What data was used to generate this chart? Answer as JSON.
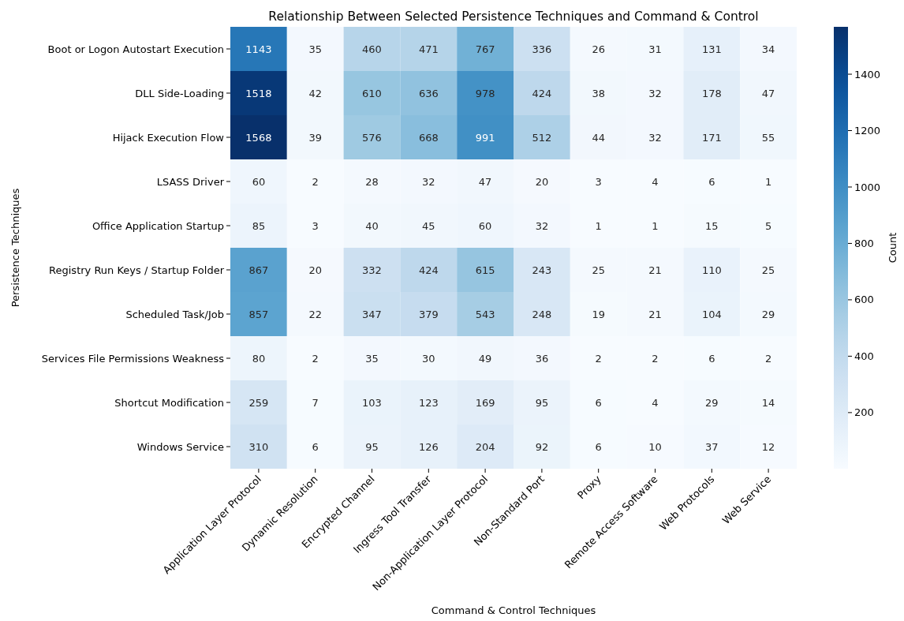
{
  "chart_data": {
    "type": "heatmap",
    "title": "Relationship Between Selected Persistence Techniques and Command & Control",
    "xlabel": "Command & Control Techniques",
    "ylabel": "Persistence Techniques",
    "clabel": "Count",
    "categories": [
      "Application Layer Protocol",
      "Dynamic Resolution",
      "Encrypted Channel",
      "Ingress Tool Transfer",
      "Non-Application Layer Protocol",
      "Non-Standard Port",
      "Proxy",
      "Remote Access Software",
      "Web Protocols",
      "Web Service"
    ],
    "y_categories": [
      "Boot or Logon Autostart Execution",
      "DLL Side-Loading",
      "Hijack Execution Flow",
      "LSASS Driver",
      "Office Application Startup",
      "Registry Run Keys / Startup Folder",
      "Scheduled Task/Job",
      "Services File Permissions Weakness",
      "Shortcut Modification",
      "Windows Service"
    ],
    "cells": [
      [
        1143,
        35,
        460,
        471,
        767,
        336,
        26,
        31,
        131,
        34
      ],
      [
        1518,
        42,
        610,
        636,
        978,
        424,
        38,
        32,
        178,
        47
      ],
      [
        1568,
        39,
        576,
        668,
        991,
        512,
        44,
        32,
        171,
        55
      ],
      [
        60,
        2,
        28,
        32,
        47,
        20,
        3,
        4,
        6,
        1
      ],
      [
        85,
        3,
        40,
        45,
        60,
        32,
        1,
        1,
        15,
        5
      ],
      [
        867,
        20,
        332,
        424,
        615,
        243,
        25,
        21,
        110,
        25
      ],
      [
        857,
        22,
        347,
        379,
        543,
        248,
        19,
        21,
        104,
        29
      ],
      [
        80,
        2,
        35,
        30,
        49,
        36,
        2,
        2,
        6,
        2
      ],
      [
        259,
        7,
        103,
        123,
        169,
        95,
        6,
        4,
        29,
        14
      ],
      [
        310,
        6,
        95,
        126,
        204,
        92,
        6,
        10,
        37,
        12
      ]
    ],
    "data_labels": true,
    "clim": [
      1,
      1568
    ],
    "cticks": [
      200,
      400,
      600,
      800,
      1000,
      1200,
      1400
    ]
  }
}
